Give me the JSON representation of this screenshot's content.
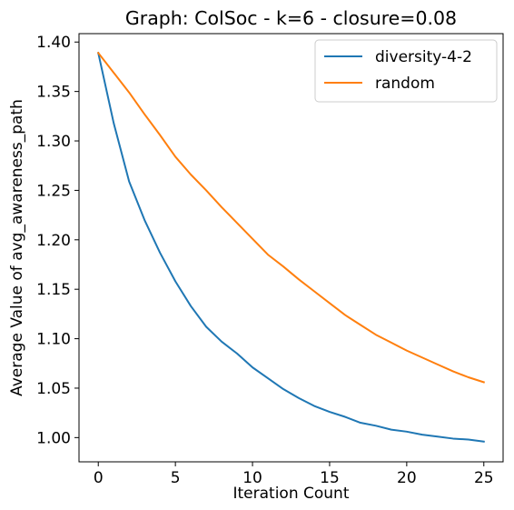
{
  "chart_data": {
    "type": "line",
    "title": "Graph: ColSoc - k=6 - closure=0.08",
    "xlabel": "Iteration Count",
    "ylabel": "Average Value of avg_awareness_path",
    "xlim": [
      -1.25,
      26.25
    ],
    "ylim": [
      0.9755,
      1.4085
    ],
    "xticks": [
      0,
      5,
      10,
      15,
      20,
      25
    ],
    "yticks": [
      1.0,
      1.05,
      1.1,
      1.15,
      1.2,
      1.25,
      1.3,
      1.35,
      1.4
    ],
    "xtick_labels": [
      "0",
      "5",
      "10",
      "15",
      "20",
      "25"
    ],
    "ytick_labels": [
      "1.00",
      "1.05",
      "1.10",
      "1.15",
      "1.20",
      "1.25",
      "1.30",
      "1.35",
      "1.40"
    ],
    "grid": false,
    "legend_position": "top-right",
    "x": [
      0,
      1,
      2,
      3,
      4,
      5,
      6,
      7,
      8,
      9,
      10,
      11,
      12,
      13,
      14,
      15,
      16,
      17,
      18,
      19,
      20,
      21,
      22,
      23,
      24,
      25
    ],
    "series": [
      {
        "name": "diversity-4-2",
        "color": "#1f77b4",
        "values": [
          1.389,
          1.318,
          1.259,
          1.22,
          1.187,
          1.158,
          1.133,
          1.112,
          1.097,
          1.085,
          1.071,
          1.06,
          1.049,
          1.04,
          1.032,
          1.026,
          1.021,
          1.015,
          1.012,
          1.008,
          1.006,
          1.003,
          1.001,
          0.999,
          0.998,
          0.996
        ]
      },
      {
        "name": "random",
        "color": "#ff7f0e",
        "values": [
          1.389,
          1.369,
          1.349,
          1.327,
          1.306,
          1.284,
          1.266,
          1.25,
          1.233,
          1.217,
          1.201,
          1.185,
          1.173,
          1.16,
          1.148,
          1.136,
          1.124,
          1.114,
          1.104,
          1.096,
          1.088,
          1.081,
          1.074,
          1.067,
          1.061,
          1.056
        ]
      }
    ]
  }
}
